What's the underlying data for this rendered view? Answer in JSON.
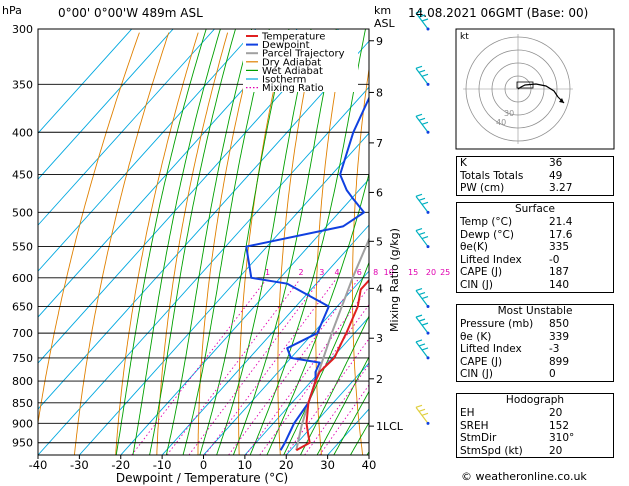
{
  "header": {
    "hpa_label": "hPa",
    "location": "0°00' 0°00'W  489m  ASL",
    "km_label": "km",
    "asl_label": "ASL",
    "datetime": "14.08.2021  06GMT  (Base: 00)"
  },
  "footer": "© weatheronline.co.uk",
  "legend": [
    "Temperature",
    "Dewpoint",
    "Parcel Trajectory",
    "Dry Adiabat",
    "Wet Adiabat",
    "Isotherm",
    "Mixing Ratio"
  ],
  "colors": {
    "temperature": "#e02020",
    "dewpoint": "#1040e0",
    "parcel": "#a0a0a0",
    "dry_adiabat": "#e08000",
    "wet_adiabat": "#00a000",
    "isotherm": "#00a8e0",
    "mixing_ratio": "#e000b0",
    "wind": "#00b0c0"
  },
  "chart_data": {
    "type": "line",
    "xlabel": "Dewpoint / Temperature (°C)",
    "ylabel": "Mixing Ratio (g/kg)",
    "x_ticks": [
      -40,
      -30,
      -20,
      -10,
      0,
      10,
      20,
      30,
      40
    ],
    "pressure_levels": [
      300,
      350,
      400,
      450,
      500,
      550,
      600,
      650,
      700,
      750,
      800,
      850,
      900,
      950
    ],
    "altitude_km_ticks": [
      {
        "label": "9",
        "p": 310
      },
      {
        "label": "8",
        "p": 358
      },
      {
        "label": "7",
        "p": 412
      },
      {
        "label": "6",
        "p": 473
      },
      {
        "label": "5",
        "p": 542
      },
      {
        "label": "4",
        "p": 618
      },
      {
        "label": "3",
        "p": 710
      },
      {
        "label": "2",
        "p": 795
      },
      {
        "label": "1LCL",
        "p": 907
      }
    ],
    "mixing_ratio_labels": [
      {
        "label": "1",
        "w": 1
      },
      {
        "label": "2",
        "w": 2
      },
      {
        "label": "3",
        "w": 3
      },
      {
        "label": "4",
        "w": 4
      },
      {
        "label": "6",
        "w": 6
      },
      {
        "label": "8",
        "w": 8
      },
      {
        "label": "10",
        "w": 10
      },
      {
        "label": "15",
        "w": 15
      },
      {
        "label": "20",
        "w": 20
      },
      {
        "label": "25",
        "w": 25
      }
    ],
    "series": [
      {
        "name": "Temperature",
        "points": [
          [
            970,
            21.4
          ],
          [
            950,
            23
          ],
          [
            930,
            21
          ],
          [
            900,
            18
          ],
          [
            850,
            14
          ],
          [
            800,
            11
          ],
          [
            780,
            10
          ],
          [
            750,
            10.5
          ],
          [
            720,
            9
          ],
          [
            700,
            8
          ],
          [
            650,
            5
          ],
          [
            620,
            2
          ],
          [
            600,
            2
          ],
          [
            550,
            -3
          ],
          [
            520,
            -5.5
          ],
          [
            500,
            -8
          ],
          [
            480,
            -10
          ],
          [
            450,
            -13
          ],
          [
            400,
            -20
          ],
          [
            350,
            -28
          ],
          [
            320,
            -34
          ],
          [
            300,
            -39
          ]
        ]
      },
      {
        "name": "Dewpoint",
        "points": [
          [
            970,
            17.6
          ],
          [
            950,
            17
          ],
          [
            900,
            15
          ],
          [
            850,
            14
          ],
          [
            800,
            11
          ],
          [
            780,
            9
          ],
          [
            760,
            8
          ],
          [
            750,
            0
          ],
          [
            730,
            -3
          ],
          [
            700,
            1
          ],
          [
            650,
            -2
          ],
          [
            610,
            -17
          ],
          [
            600,
            -27
          ],
          [
            550,
            -35
          ],
          [
            520,
            -16
          ],
          [
            500,
            -14
          ],
          [
            480,
            -20
          ],
          [
            470,
            -23
          ],
          [
            450,
            -28
          ],
          [
            400,
            -34
          ],
          [
            360,
            -38
          ],
          [
            330,
            -44
          ],
          [
            310,
            -46
          ],
          [
            300,
            -48
          ]
        ]
      },
      {
        "name": "Parcel Trajectory",
        "points": [
          [
            970,
            21.4
          ],
          [
            907,
            17.4
          ],
          [
            850,
            14
          ],
          [
            800,
            11
          ],
          [
            700,
            4.5
          ],
          [
            600,
            -2.5
          ],
          [
            500,
            -10
          ],
          [
            400,
            -20
          ],
          [
            350,
            -26.5
          ],
          [
            300,
            -34.5
          ]
        ]
      }
    ],
    "wind_barbs": [
      300,
      350,
      400,
      500,
      550,
      650,
      700,
      750,
      900
    ]
  },
  "stats": {
    "rows1": [
      {
        "label": "K",
        "value": "36"
      },
      {
        "label": "Totals Totals",
        "value": "49"
      },
      {
        "label": "PW (cm)",
        "value": "3.27"
      }
    ],
    "surface": {
      "title": "Surface",
      "rows": [
        {
          "label": "Temp (°C)",
          "value": "21.4"
        },
        {
          "label": "Dewp (°C)",
          "value": "17.6"
        },
        {
          "label": "θe(K)",
          "value": "335"
        },
        {
          "label": "Lifted Index",
          "value": "-0"
        },
        {
          "label": "CAPE (J)",
          "value": "187"
        },
        {
          "label": "CIN (J)",
          "value": "140"
        }
      ]
    },
    "unstable": {
      "title": "Most Unstable",
      "rows": [
        {
          "label": "Pressure (mb)",
          "value": "850"
        },
        {
          "label": "θe (K)",
          "value": "339"
        },
        {
          "label": "Lifted Index",
          "value": "-3"
        },
        {
          "label": "CAPE (J)",
          "value": "899"
        },
        {
          "label": "CIN (J)",
          "value": "0"
        }
      ]
    },
    "hodograph": {
      "title": "Hodograph",
      "rows": [
        {
          "label": "EH",
          "value": "20"
        },
        {
          "label": "SREH",
          "value": "152"
        },
        {
          "label": "StmDir",
          "value": "310°"
        },
        {
          "label": "StmSpd (kt)",
          "value": "20"
        }
      ]
    }
  },
  "hodo": {
    "unit": "kt",
    "ring_labels": [
      "40",
      "30"
    ]
  }
}
